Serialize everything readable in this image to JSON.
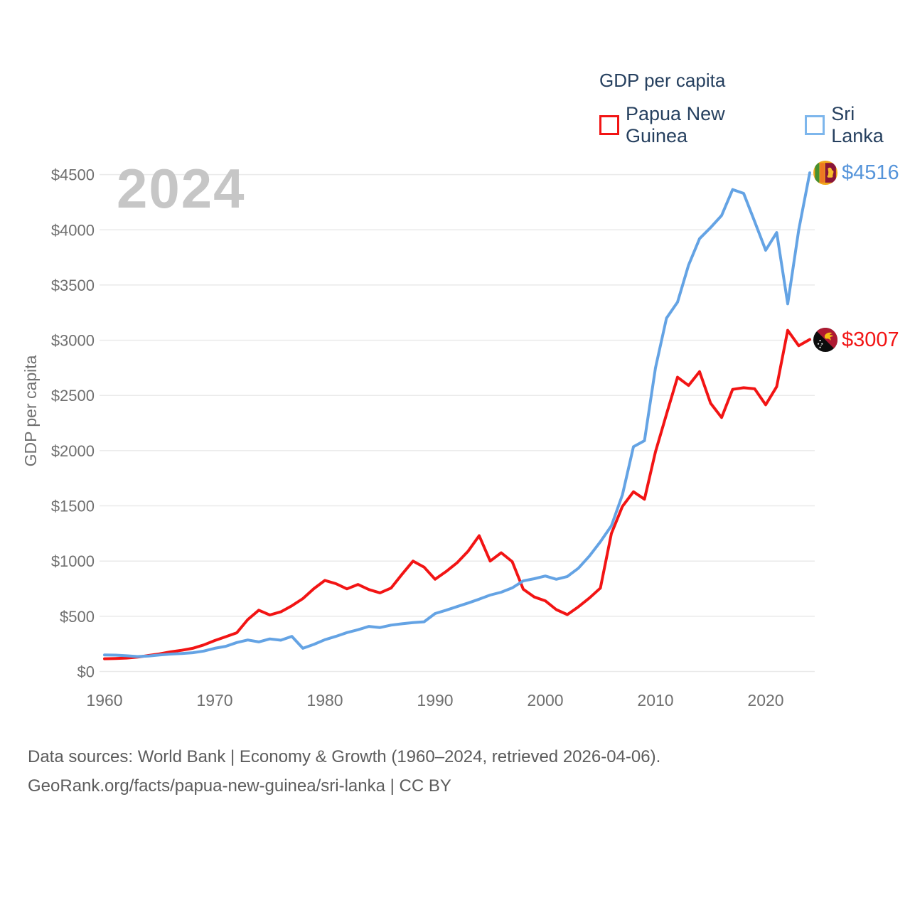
{
  "watermark": "2024",
  "legend": {
    "title": "GDP per capita",
    "items": [
      {
        "label": "Papua New Guinea",
        "color": "#f21414"
      },
      {
        "label": "Sri Lanka",
        "color": "#64a3e4"
      }
    ]
  },
  "y_axis_title": "GDP per capita",
  "footer": {
    "line1": "Data sources: World Bank | Economy & Growth (1960–2024, retrieved 2026-04-06).",
    "line2": "GeoRank.org/facts/papua-new-guinea/sri-lanka | CC BY"
  },
  "chart_data": {
    "type": "line",
    "title": "GDP per capita",
    "xlabel": "",
    "ylabel": "GDP per capita",
    "x_start": 1960,
    "x_end": 2024,
    "x_ticks": [
      1960,
      1970,
      1980,
      1990,
      2000,
      2010,
      2020
    ],
    "ylim": [
      0,
      4500
    ],
    "ytick_step": 500,
    "ytick_prefix": "$",
    "grid": true,
    "legend_position": "top-right",
    "series": [
      {
        "name": "Papua New Guinea",
        "color": "#f21414",
        "end_label": "$3007",
        "end_value": 3007,
        "values": [
          115,
          118,
          122,
          130,
          145,
          160,
          178,
          192,
          210,
          240,
          280,
          315,
          350,
          470,
          555,
          512,
          540,
          595,
          660,
          750,
          825,
          795,
          748,
          788,
          742,
          712,
          755,
          880,
          1000,
          945,
          835,
          905,
          985,
          1090,
          1230,
          1000,
          1075,
          995,
          745,
          675,
          640,
          560,
          515,
          585,
          665,
          755,
          1250,
          1495,
          1628,
          1560,
          1990,
          2330,
          2665,
          2590,
          2715,
          2430,
          2300,
          2555,
          2570,
          2560,
          2415,
          2580,
          3090,
          2950,
          3007
        ]
      },
      {
        "name": "Sri Lanka",
        "color": "#64a3e4",
        "end_label": "$4516",
        "end_value": 4516,
        "values": [
          150,
          148,
          142,
          135,
          140,
          150,
          158,
          163,
          170,
          185,
          210,
          228,
          262,
          285,
          268,
          295,
          283,
          318,
          210,
          245,
          288,
          318,
          352,
          378,
          408,
          398,
          420,
          432,
          443,
          450,
          525,
          555,
          588,
          620,
          655,
          692,
          718,
          757,
          820,
          840,
          865,
          835,
          860,
          935,
          1045,
          1175,
          1320,
          1600,
          2035,
          2090,
          2750,
          3200,
          3345,
          3680,
          3920,
          4020,
          4130,
          4365,
          4330,
          4075,
          3815,
          3975,
          3330,
          4000,
          4516
        ]
      }
    ]
  },
  "colors": {
    "grid": "#eaeaea",
    "axis_text": "#6f6f6f",
    "legend_text": "#26405f",
    "watermark": "#c6c6c6",
    "footer_text": "#5c5c5c"
  }
}
